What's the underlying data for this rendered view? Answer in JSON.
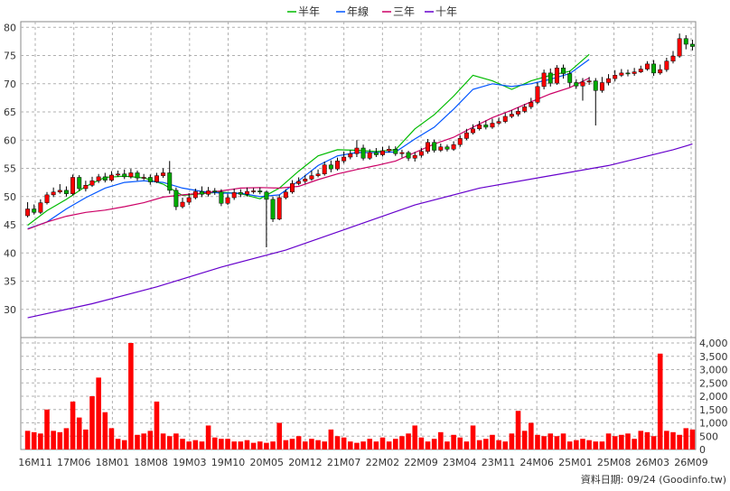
{
  "chart_data": [
    {
      "type": "candlestick",
      "legend_placement": "top-center",
      "grid": true,
      "ylim": [
        25,
        81
      ],
      "y_ticks": [
        30,
        35,
        40,
        45,
        50,
        55,
        60,
        65,
        70,
        75,
        80
      ],
      "x_ticks": [
        "16M11",
        "17M06",
        "18M01",
        "18M08",
        "19M03",
        "19M10",
        "20M05",
        "20M12",
        "21M07",
        "22M02",
        "22M09",
        "23M04",
        "23M11",
        "24M06",
        "25M01",
        "25M08",
        "26M03",
        "26M09"
      ],
      "candle_colors": {
        "up": "#ff0000",
        "down": "#00aa00",
        "wick": "#000000"
      },
      "series": [
        {
          "name": "半年",
          "color": "#00bb00",
          "points": [
            [
              0,
              44.9
            ],
            [
              3,
              47.5
            ],
            [
              6,
              49.5
            ],
            [
              9,
              51.8
            ],
            [
              12,
              53.4
            ],
            [
              15,
              53.6
            ],
            [
              18,
              53.3
            ],
            [
              21,
              52.2
            ],
            [
              24,
              50.2
            ],
            [
              27,
              50.5
            ],
            [
              30,
              50.8
            ],
            [
              33,
              50.5
            ],
            [
              36,
              49.6
            ],
            [
              39,
              51.5
            ],
            [
              42,
              54.5
            ],
            [
              45,
              57.2
            ],
            [
              48,
              58.3
            ],
            [
              51,
              58.2
            ],
            [
              54,
              58.0
            ],
            [
              57,
              58.3
            ],
            [
              60,
              62.0
            ],
            [
              63,
              64.5
            ],
            [
              66,
              67.8
            ],
            [
              69,
              71.5
            ],
            [
              72,
              70.5
            ],
            [
              75,
              69.0
            ],
            [
              78,
              70.5
            ],
            [
              81,
              71.5
            ],
            [
              84,
              72.2
            ],
            [
              87,
              75.2
            ]
          ]
        },
        {
          "name": "年線",
          "color": "#0055ff",
          "points": [
            [
              0,
              44.3
            ],
            [
              3,
              45.5
            ],
            [
              6,
              47.8
            ],
            [
              9,
              49.8
            ],
            [
              12,
              51.5
            ],
            [
              15,
              52.5
            ],
            [
              18,
              52.8
            ],
            [
              21,
              52.5
            ],
            [
              24,
              51.5
            ],
            [
              27,
              50.9
            ],
            [
              30,
              50.6
            ],
            [
              33,
              50.6
            ],
            [
              36,
              50.0
            ],
            [
              39,
              50.3
            ],
            [
              42,
              52.8
            ],
            [
              45,
              55.5
            ],
            [
              48,
              57.2
            ],
            [
              51,
              57.8
            ],
            [
              54,
              57.8
            ],
            [
              57,
              57.9
            ],
            [
              60,
              60.2
            ],
            [
              63,
              62.3
            ],
            [
              66,
              65.5
            ],
            [
              69,
              69.0
            ],
            [
              72,
              70.0
            ],
            [
              75,
              69.5
            ],
            [
              78,
              70.0
            ],
            [
              81,
              70.8
            ],
            [
              84,
              71.8
            ],
            [
              87,
              74.3
            ]
          ]
        },
        {
          "name": "三年",
          "color": "#cc0066",
          "points": [
            [
              0,
              44.2
            ],
            [
              3,
              45.5
            ],
            [
              6,
              46.5
            ],
            [
              9,
              47.2
            ],
            [
              12,
              47.6
            ],
            [
              15,
              48.2
            ],
            [
              18,
              48.9
            ],
            [
              21,
              49.9
            ],
            [
              24,
              50.3
            ],
            [
              27,
              50.6
            ],
            [
              30,
              51.0
            ],
            [
              33,
              51.5
            ],
            [
              36,
              51.6
            ],
            [
              39,
              51.5
            ],
            [
              42,
              51.8
            ],
            [
              45,
              53.0
            ],
            [
              48,
              54.0
            ],
            [
              51,
              54.8
            ],
            [
              54,
              55.5
            ],
            [
              57,
              56.3
            ],
            [
              60,
              57.8
            ],
            [
              63,
              59.3
            ],
            [
              66,
              60.5
            ],
            [
              69,
              62.3
            ],
            [
              72,
              64.0
            ],
            [
              75,
              65.3
            ],
            [
              78,
              66.8
            ],
            [
              81,
              68.2
            ],
            [
              84,
              69.3
            ],
            [
              87,
              71.0
            ]
          ]
        },
        {
          "name": "十年",
          "color": "#6600cc",
          "points": [
            [
              0,
              28.5
            ],
            [
              10,
              31.0
            ],
            [
              20,
              34.0
            ],
            [
              30,
              37.5
            ],
            [
              40,
              40.5
            ],
            [
              50,
              44.5
            ],
            [
              60,
              48.5
            ],
            [
              70,
              51.5
            ],
            [
              80,
              53.5
            ],
            [
              90,
              55.5
            ],
            [
              100,
              58.3
            ],
            [
              103,
              59.3
            ]
          ]
        }
      ],
      "candles": [
        [
          46.6,
          47.8,
          49.0,
          46.3
        ],
        [
          47.8,
          47.2,
          48.6,
          46.8
        ],
        [
          47.2,
          48.9,
          49.5,
          46.9
        ],
        [
          48.9,
          50.3,
          50.8,
          48.6
        ],
        [
          50.3,
          50.8,
          51.6,
          49.9
        ],
        [
          50.8,
          51.1,
          52.2,
          50.5
        ],
        [
          51.1,
          50.5,
          51.8,
          50.0
        ],
        [
          50.5,
          53.4,
          53.9,
          50.2
        ],
        [
          53.4,
          51.4,
          53.8,
          51.0
        ],
        [
          51.4,
          52.0,
          52.8,
          50.9
        ],
        [
          52.0,
          52.8,
          53.5,
          51.7
        ],
        [
          52.8,
          53.5,
          54.0,
          52.4
        ],
        [
          53.5,
          52.9,
          54.2,
          52.5
        ],
        [
          52.9,
          53.8,
          54.5,
          52.6
        ],
        [
          53.8,
          54.0,
          54.6,
          53.5
        ],
        [
          54.0,
          53.5,
          54.8,
          53.1
        ],
        [
          53.5,
          54.2,
          54.9,
          53.2
        ],
        [
          54.2,
          53.3,
          54.6,
          52.8
        ],
        [
          53.3,
          53.4,
          54.0,
          52.9
        ],
        [
          53.4,
          52.6,
          53.9,
          52.1
        ],
        [
          52.6,
          53.7,
          54.2,
          52.4
        ],
        [
          53.7,
          54.2,
          55.0,
          53.3
        ],
        [
          54.2,
          51.1,
          56.3,
          50.5
        ],
        [
          51.1,
          48.2,
          51.6,
          47.6
        ],
        [
          48.2,
          49.0,
          49.8,
          47.9
        ],
        [
          49.0,
          49.8,
          50.6,
          48.5
        ],
        [
          49.8,
          50.9,
          51.4,
          49.5
        ],
        [
          50.9,
          50.4,
          51.8,
          49.9
        ],
        [
          50.4,
          51.0,
          51.7,
          50.0
        ],
        [
          51.0,
          50.8,
          51.5,
          50.3
        ],
        [
          50.8,
          48.8,
          51.3,
          48.3
        ],
        [
          48.8,
          49.8,
          50.5,
          48.5
        ],
        [
          49.8,
          50.7,
          51.4,
          49.4
        ],
        [
          50.7,
          50.4,
          51.3,
          49.9
        ],
        [
          50.4,
          50.9,
          51.6,
          50.0
        ],
        [
          50.9,
          51.0,
          51.5,
          50.5
        ],
        [
          51.0,
          50.8,
          51.6,
          50.4
        ],
        [
          50.8,
          49.5,
          51.0,
          41.0
        ],
        [
          49.5,
          46.0,
          50.0,
          45.5
        ],
        [
          46.0,
          49.8,
          50.3,
          45.8
        ],
        [
          49.8,
          50.8,
          51.3,
          49.5
        ],
        [
          50.8,
          52.3,
          52.9,
          50.5
        ],
        [
          52.3,
          52.7,
          53.4,
          52.0
        ],
        [
          52.7,
          53.1,
          53.8,
          52.3
        ],
        [
          53.1,
          53.7,
          54.6,
          52.8
        ],
        [
          53.7,
          54.0,
          54.8,
          53.4
        ],
        [
          54.0,
          55.6,
          56.2,
          53.7
        ],
        [
          55.6,
          54.9,
          56.4,
          54.3
        ],
        [
          54.9,
          56.3,
          56.9,
          54.6
        ],
        [
          56.3,
          57.0,
          58.0,
          55.9
        ],
        [
          57.0,
          57.6,
          58.2,
          56.6
        ],
        [
          57.6,
          58.6,
          60.0,
          57.0
        ],
        [
          58.6,
          56.8,
          59.2,
          56.4
        ],
        [
          56.8,
          57.8,
          58.4,
          56.5
        ],
        [
          57.8,
          57.4,
          58.6,
          57.0
        ],
        [
          57.4,
          58.1,
          58.8,
          57.1
        ],
        [
          58.1,
          58.4,
          59.0,
          57.8
        ],
        [
          58.4,
          57.6,
          58.9,
          57.2
        ],
        [
          57.6,
          57.8,
          58.3,
          56.9
        ],
        [
          57.8,
          56.8,
          58.1,
          56.3
        ],
        [
          56.8,
          57.3,
          57.9,
          56.2
        ],
        [
          57.3,
          58.0,
          58.6,
          56.9
        ],
        [
          58.0,
          59.6,
          60.2,
          57.6
        ],
        [
          59.6,
          58.2,
          60.1,
          57.8
        ],
        [
          58.2,
          58.8,
          59.4,
          57.9
        ],
        [
          58.8,
          58.4,
          59.2,
          58.0
        ],
        [
          58.4,
          59.2,
          59.8,
          58.1
        ],
        [
          59.2,
          60.3,
          60.9,
          58.8
        ],
        [
          60.3,
          61.3,
          62.0,
          60.0
        ],
        [
          61.3,
          62.0,
          62.8,
          61.0
        ],
        [
          62.0,
          62.7,
          63.4,
          61.7
        ],
        [
          62.7,
          62.3,
          63.5,
          61.9
        ],
        [
          62.3,
          63.0,
          63.8,
          62.0
        ],
        [
          63.0,
          63.3,
          64.0,
          62.7
        ],
        [
          63.3,
          64.2,
          64.8,
          63.0
        ],
        [
          64.2,
          64.6,
          65.3,
          63.9
        ],
        [
          64.6,
          65.1,
          65.8,
          64.2
        ],
        [
          65.1,
          65.9,
          66.4,
          64.8
        ],
        [
          65.9,
          66.7,
          67.5,
          65.5
        ],
        [
          66.7,
          69.5,
          70.2,
          66.4
        ],
        [
          69.5,
          71.9,
          72.5,
          69.0
        ],
        [
          71.9,
          70.1,
          72.7,
          69.5
        ],
        [
          70.1,
          72.8,
          73.3,
          69.8
        ],
        [
          72.8,
          71.8,
          73.4,
          70.9
        ],
        [
          71.8,
          70.2,
          72.3,
          69.4
        ],
        [
          70.2,
          69.6,
          70.8,
          69.1
        ],
        [
          69.6,
          70.3,
          71.0,
          67.0
        ],
        [
          70.3,
          70.5,
          71.2,
          69.8
        ],
        [
          70.5,
          68.8,
          71.0,
          62.6
        ],
        [
          68.8,
          70.2,
          71.2,
          68.4
        ],
        [
          70.2,
          70.9,
          71.7,
          69.7
        ],
        [
          70.9,
          71.5,
          72.4,
          70.4
        ],
        [
          71.5,
          71.9,
          72.6,
          71.2
        ],
        [
          71.9,
          71.8,
          72.5,
          71.3
        ],
        [
          71.8,
          72.1,
          72.8,
          71.4
        ],
        [
          72.1,
          72.6,
          73.2,
          71.9
        ],
        [
          72.6,
          73.5,
          74.0,
          72.3
        ],
        [
          73.5,
          71.9,
          74.2,
          71.4
        ],
        [
          71.9,
          72.5,
          73.4,
          71.6
        ],
        [
          72.5,
          74.0,
          74.6,
          72.1
        ],
        [
          74.0,
          74.9,
          75.8,
          73.6
        ],
        [
          74.9,
          78.0,
          78.9,
          74.6
        ],
        [
          78.0,
          77.0,
          78.6,
          76.1
        ],
        [
          77.0,
          76.6,
          77.8,
          75.9
        ]
      ],
      "volume": {
        "ylim": [
          0,
          4000
        ],
        "y_ticks": [
          0,
          500,
          1000,
          1500,
          2000,
          2500,
          3000,
          3500,
          4000
        ],
        "y_tick_labels": [
          "0",
          "500",
          "1,000",
          "1,500",
          "2,000",
          "2,500",
          "3,000",
          "3,500",
          "4,000"
        ],
        "values": [
          700,
          650,
          600,
          1500,
          700,
          650,
          800,
          1800,
          1200,
          750,
          2000,
          2700,
          1400,
          800,
          400,
          350,
          4000,
          550,
          600,
          700,
          1800,
          600,
          500,
          600,
          400,
          300,
          350,
          300,
          900,
          450,
          400,
          400,
          300,
          300,
          350,
          250,
          300,
          250,
          300,
          1000,
          350,
          400,
          500,
          300,
          400,
          350,
          300,
          750,
          500,
          450,
          300,
          250,
          300,
          400,
          300,
          450,
          300,
          400,
          500,
          600,
          900,
          450,
          300,
          400,
          650,
          300,
          550,
          450,
          300,
          900,
          350,
          400,
          550,
          350,
          300,
          600,
          1450,
          700,
          1000,
          550,
          500,
          600,
          500,
          600,
          300,
          350,
          400,
          350,
          300,
          300,
          600,
          500,
          550,
          600,
          400,
          700,
          650,
          500,
          3600,
          700,
          650,
          550,
          800,
          750
        ]
      }
    }
  ],
  "footer": {
    "text": "資料日期: 09/24  (Goodinfo.tw)"
  }
}
